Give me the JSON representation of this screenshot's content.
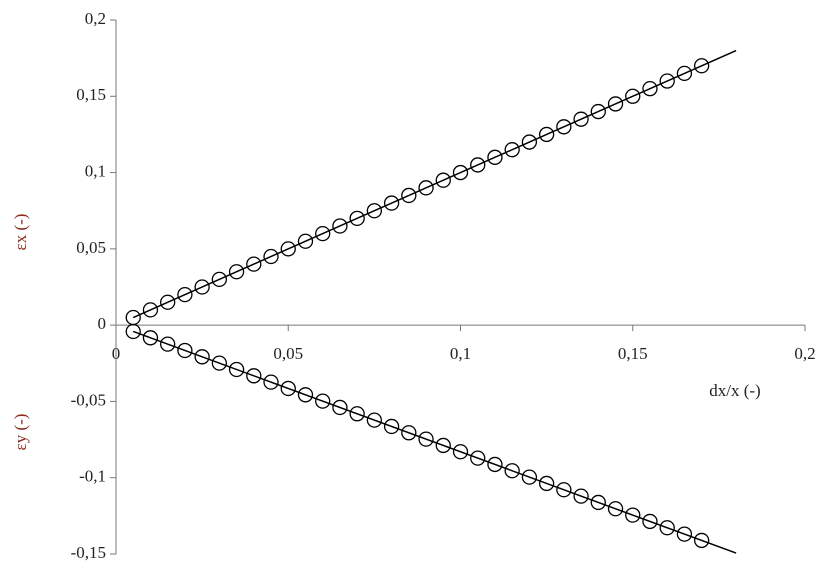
{
  "chart_data": {
    "type": "scatter",
    "x_label": "dx/x (-)",
    "y_labels": [
      "εx (-)",
      "εy (-)"
    ],
    "xlim": [
      0,
      0.2
    ],
    "xticks": [
      {
        "value": 0,
        "label": "0"
      },
      {
        "value": 0.05,
        "label": "0,05"
      },
      {
        "value": 0.1,
        "label": "0,1"
      },
      {
        "value": 0.15,
        "label": "0,15"
      },
      {
        "value": 0.2,
        "label": "0,2"
      }
    ],
    "ylim": [
      -0.15,
      0.2
    ],
    "yticks": [
      {
        "value": -0.15,
        "label": "-0,15"
      },
      {
        "value": -0.1,
        "label": "-0,1"
      },
      {
        "value": -0.05,
        "label": "-0,05"
      },
      {
        "value": 0,
        "label": "0"
      },
      {
        "value": 0.05,
        "label": "0,05"
      },
      {
        "value": 0.1,
        "label": "0,1"
      },
      {
        "value": 0.15,
        "label": "0,15"
      },
      {
        "value": 0.2,
        "label": "0,2"
      }
    ],
    "label_color": "#8b2c1c",
    "color": "#000000",
    "series": [
      {
        "x": [
          0.005,
          0.01,
          0.015,
          0.02,
          0.025,
          0.03,
          0.035,
          0.04,
          0.045,
          0.05,
          0.055,
          0.06,
          0.065,
          0.07,
          0.075,
          0.08,
          0.085,
          0.09,
          0.095,
          0.1,
          0.105,
          0.11,
          0.115,
          0.12,
          0.125,
          0.13,
          0.135,
          0.14,
          0.145,
          0.15,
          0.155,
          0.16,
          0.165,
          0.17
        ],
        "values": [
          0.005,
          0.01,
          0.015,
          0.02,
          0.025,
          0.03,
          0.035,
          0.04,
          0.045,
          0.05,
          0.055,
          0.06,
          0.065,
          0.07,
          0.075,
          0.08,
          0.085,
          0.09,
          0.095,
          0.1,
          0.105,
          0.11,
          0.115,
          0.12,
          0.125,
          0.13,
          0.135,
          0.14,
          0.145,
          0.15,
          0.155,
          0.16,
          0.165,
          0.17
        ]
      },
      {
        "x": [
          0.005,
          0.01,
          0.015,
          0.02,
          0.025,
          0.03,
          0.035,
          0.04,
          0.045,
          0.05,
          0.055,
          0.06,
          0.065,
          0.07,
          0.075,
          0.08,
          0.085,
          0.09,
          0.095,
          0.1,
          0.105,
          0.11,
          0.115,
          0.12,
          0.125,
          0.13,
          0.135,
          0.14,
          0.145,
          0.15,
          0.155,
          0.16,
          0.165,
          0.17
        ],
        "values": [
          -0.00415,
          -0.0083,
          -0.01245,
          -0.0166,
          -0.02075,
          -0.0249,
          -0.02905,
          -0.0332,
          -0.03735,
          -0.0415,
          -0.04565,
          -0.0498,
          -0.05395,
          -0.0581,
          -0.06225,
          -0.0664,
          -0.07055,
          -0.0747,
          -0.07885,
          -0.083,
          -0.08715,
          -0.0913,
          -0.09545,
          -0.0996,
          -0.10375,
          -0.1079,
          -0.11205,
          -0.1162,
          -0.12035,
          -0.1245,
          -0.12865,
          -0.1328,
          -0.13695,
          -0.1411
        ]
      }
    ],
    "fits": [
      {
        "x": [
          0.005,
          0.18
        ],
        "values": [
          0.005,
          0.18
        ]
      },
      {
        "x": [
          0.005,
          0.18
        ],
        "values": [
          -0.00415,
          -0.1494
        ]
      }
    ]
  }
}
